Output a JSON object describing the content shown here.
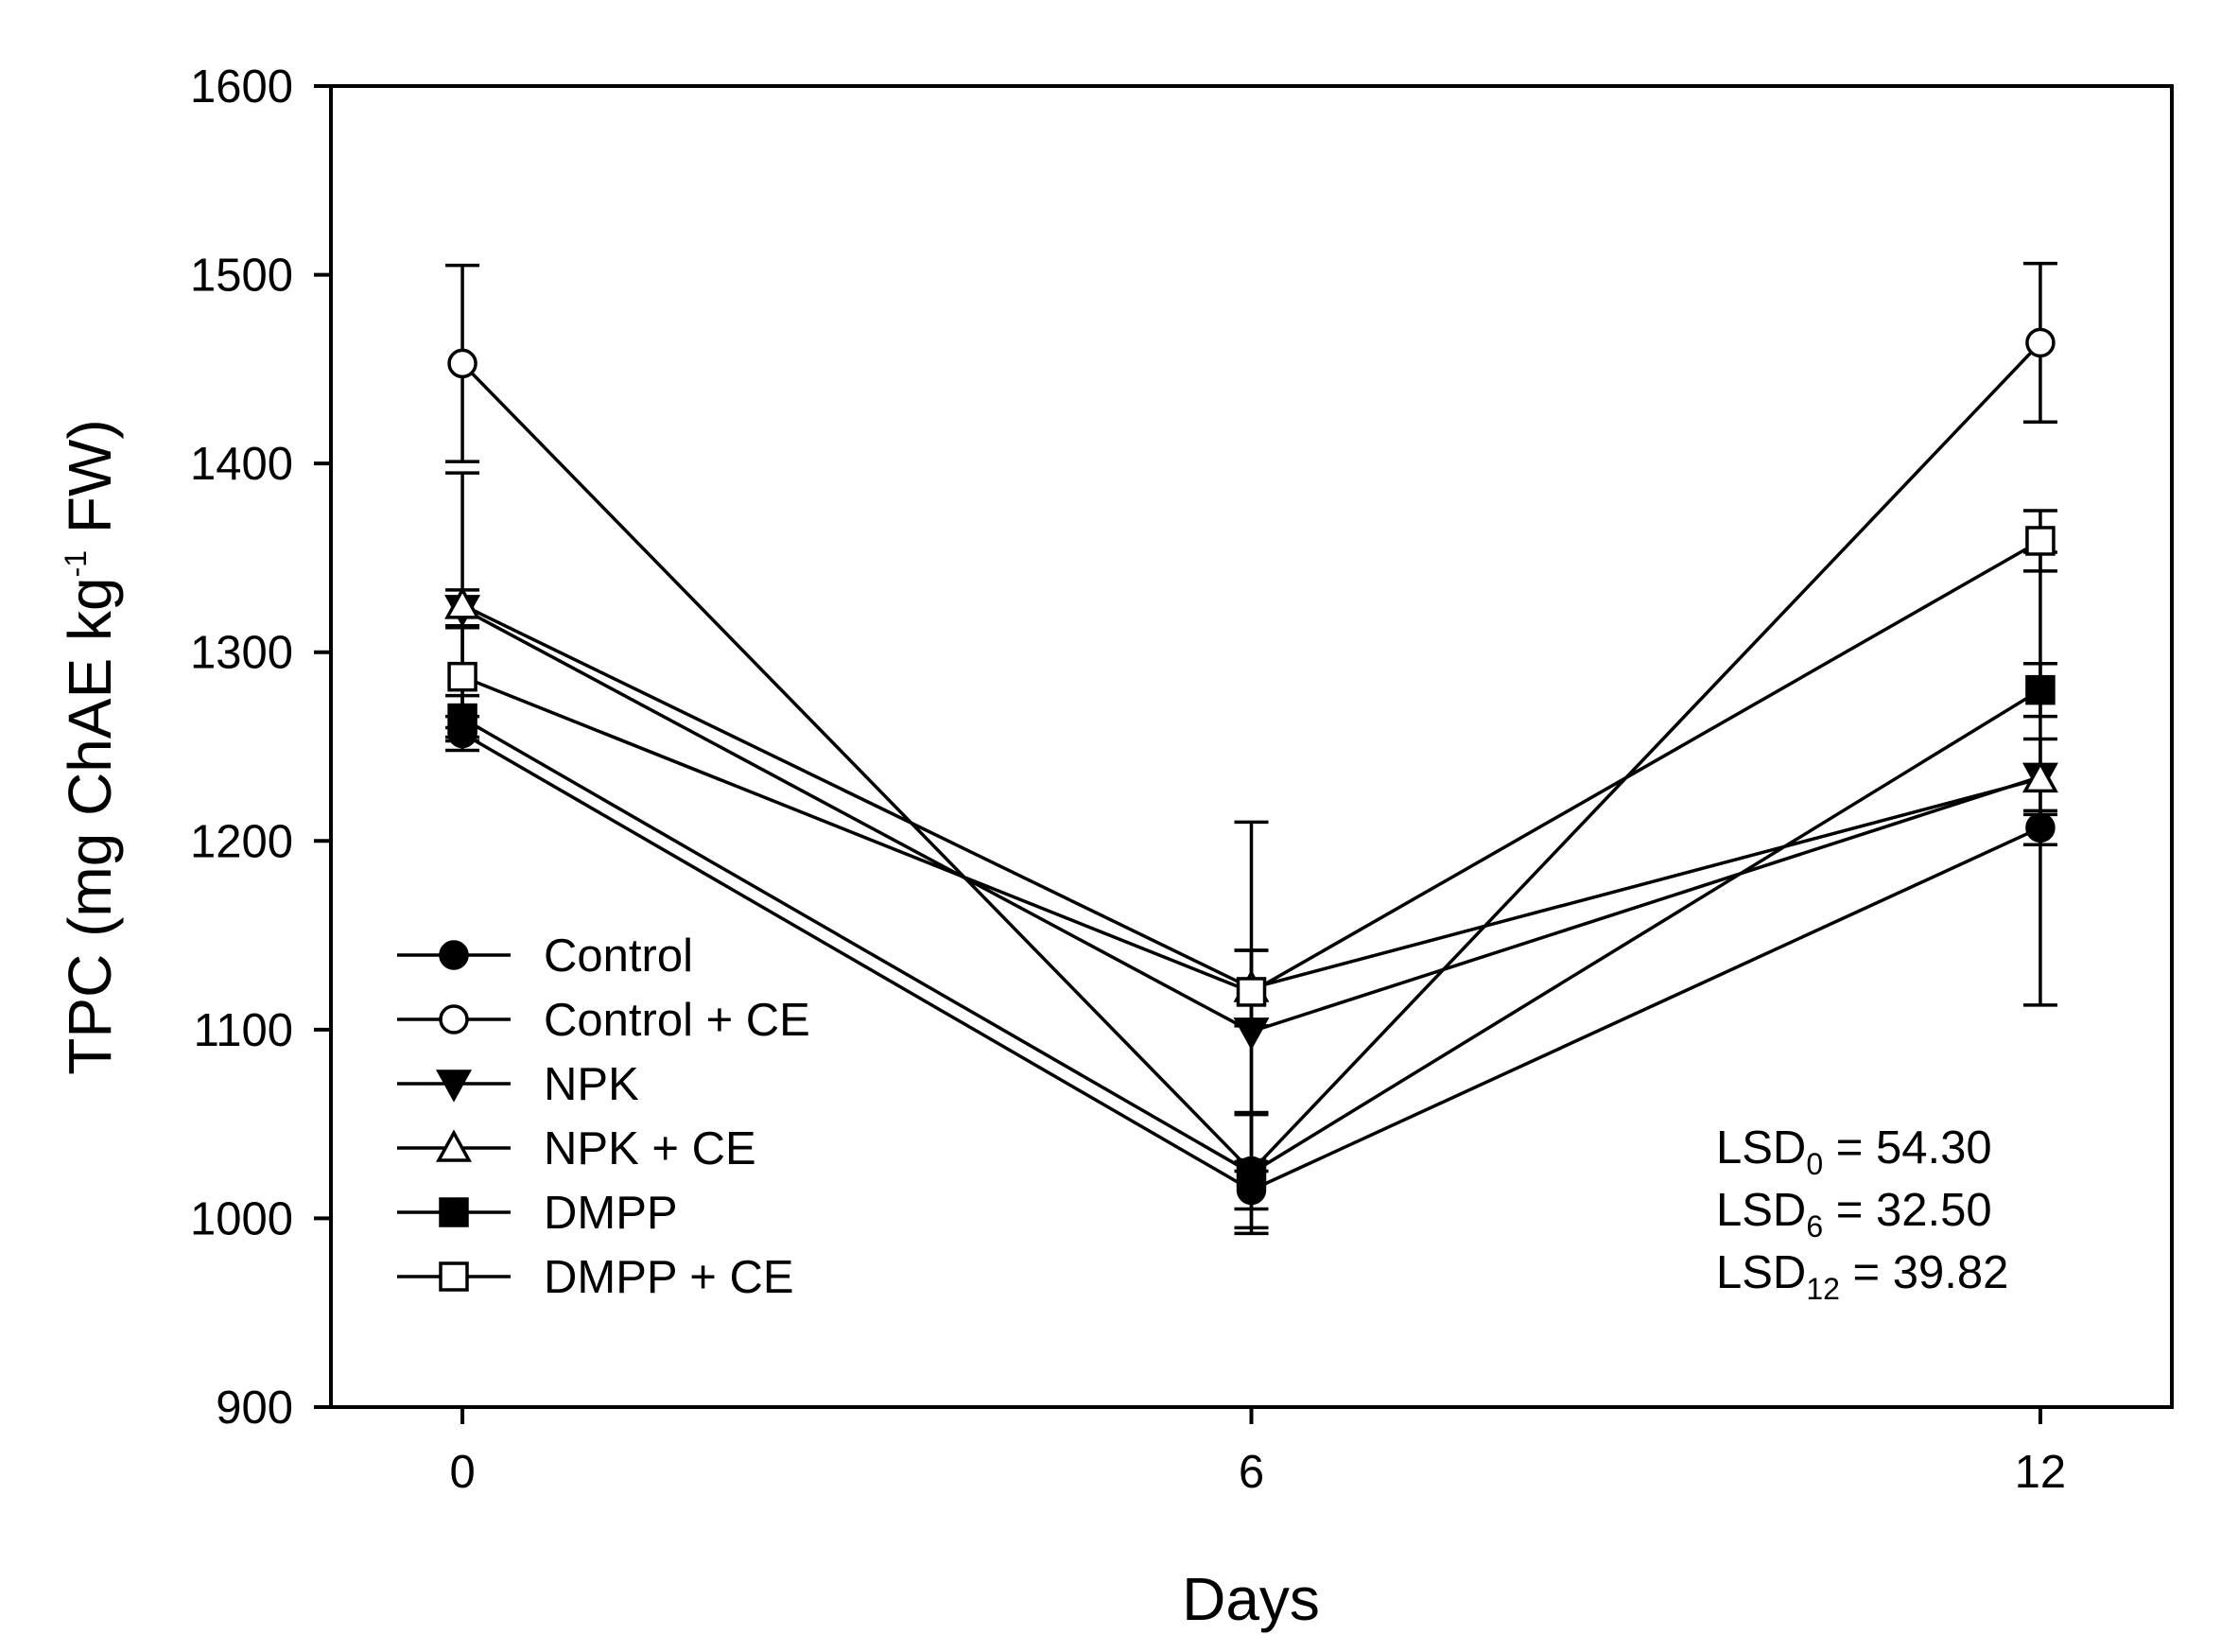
{
  "chart_data": {
    "type": "line",
    "title": "",
    "xlabel": "Days",
    "ylabel": {
      "main": "TPC (mg ChAE kg",
      "sup": "-1",
      "tail": " FW)"
    },
    "x": [
      0,
      6,
      12
    ],
    "x_ticks": [
      "0",
      "6",
      "12"
    ],
    "xlim": [
      -1,
      13
    ],
    "ylim": [
      900,
      1600
    ],
    "y_ticks": [
      900,
      1000,
      1100,
      1200,
      1300,
      1400,
      1500,
      1600
    ],
    "grid": false,
    "legend_position": "bottom-left",
    "series": [
      {
        "name": "Control",
        "marker": "circle",
        "filled": true,
        "values": [
          1257,
          1015,
          1207
        ],
        "errors": [
          9,
          10,
          9
        ]
      },
      {
        "name": "Control + CE",
        "marker": "circle",
        "filled": false,
        "values": [
          1453,
          1025,
          1464
        ],
        "errors": [
          52,
          30,
          42
        ]
      },
      {
        "name": "NPK",
        "marker": "triangle-down",
        "filled": true,
        "values": [
          1323,
          1099,
          1234
        ],
        "errors": [
          10,
          43,
          20
        ]
      },
      {
        "name": "NPK + CE",
        "marker": "triangle-up",
        "filled": false,
        "values": [
          1325,
          1122,
          1233
        ],
        "errors": [
          70,
          20,
          120
        ]
      },
      {
        "name": "DMPP",
        "marker": "square",
        "filled": true,
        "values": [
          1265,
          1024,
          1280
        ],
        "errors": [
          12,
          32,
          14
        ]
      },
      {
        "name": "DMPP + CE",
        "marker": "square",
        "filled": false,
        "values": [
          1287,
          1120,
          1359
        ],
        "errors": [
          27,
          90,
          16
        ]
      }
    ],
    "annotations": [
      {
        "prefix": "LSD",
        "sub": "0",
        "value": " = 54.30"
      },
      {
        "prefix": "LSD",
        "sub": "6",
        "value": " = 32.50"
      },
      {
        "prefix": "LSD",
        "sub": "12",
        "value": " = 39.82"
      }
    ],
    "colors": {
      "line": "#000000",
      "background": "#ffffff"
    }
  }
}
